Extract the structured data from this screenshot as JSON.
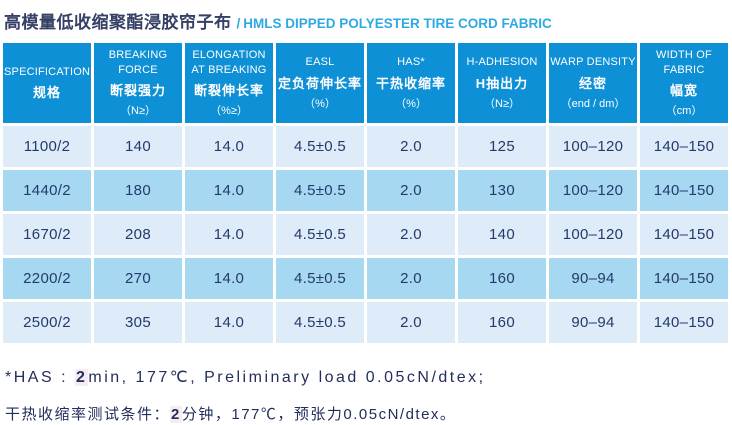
{
  "title": {
    "cn": "高模量低收缩聚酯浸胶帘子布",
    "sep": "/",
    "en": "HMLS DIPPED POLYESTER TIRE CORD FABRIC"
  },
  "table": {
    "columns": [
      {
        "en": "SPECIFICATION",
        "cn": "规格",
        "unit": ""
      },
      {
        "en": "BREAKING FORCE",
        "cn": "断裂强力",
        "unit": "（N≥）"
      },
      {
        "en": "ELONGATION AT BREAKING",
        "cn": "断裂伸长率",
        "unit": "（%≥）"
      },
      {
        "en": "EASL",
        "cn": "定负荷伸长率",
        "unit": "（%）"
      },
      {
        "en": "HAS*",
        "cn": "干热收缩率",
        "unit": "（%）"
      },
      {
        "en": "H-ADHESION",
        "cn": "H抽出力",
        "unit": "（N≥）"
      },
      {
        "en": "WARP DENSITY",
        "cn": "经密",
        "unit": "（end / dm）"
      },
      {
        "en": "WIDTH OF FABRIC",
        "cn": "幅宽",
        "unit": "（cm）"
      }
    ],
    "rows": [
      [
        "1100/2",
        "140",
        "14.0",
        "4.5±0.5",
        "2.0",
        "125",
        "100–120",
        "140–150"
      ],
      [
        "1440/2",
        "180",
        "14.0",
        "4.5±0.5",
        "2.0",
        "130",
        "100–120",
        "140–150"
      ],
      [
        "1670/2",
        "208",
        "14.0",
        "4.5±0.5",
        "2.0",
        "140",
        "100–120",
        "140–150"
      ],
      [
        "2200/2",
        "270",
        "14.0",
        "4.5±0.5",
        "2.0",
        "160",
        "90–94",
        "140–150"
      ],
      [
        "2500/2",
        "305",
        "14.0",
        "4.5±0.5",
        "2.0",
        "160",
        "90–94",
        "140–150"
      ]
    ]
  },
  "footnotes": [
    {
      "lang": "en",
      "prefix": "*HAS : ",
      "highlight": "2",
      "suffix": "min, 177℃, Preliminary load 0.05cN/dtex;"
    },
    {
      "lang": "cn",
      "prefix": "干热收缩率测试条件：",
      "highlight": "2",
      "suffix": "分钟，177℃，预张力0.05cN/dtex。"
    }
  ],
  "colors": {
    "header_bg": "#0e90d6",
    "row_light": "#ddecf8",
    "row_medium": "#a6d8f1",
    "cell_text": "#25396b",
    "title_cn": "#363f66",
    "title_en": "#2fa9e1",
    "footnote_text": "#232e5c"
  }
}
